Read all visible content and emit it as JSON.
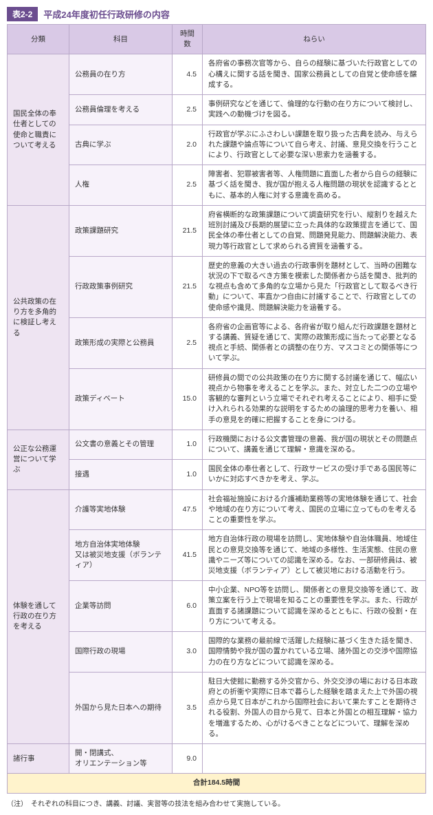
{
  "title": {
    "badge": "表2-2",
    "text": "平成24年度初任行政研修の内容"
  },
  "headers": {
    "category": "分類",
    "subject": "科目",
    "hours": "時間数",
    "aim": "ねらい"
  },
  "groups": [
    {
      "category": "国民全体の奉仕者としての使命と職責について考える",
      "rows": [
        {
          "subject": "公務員の在り方",
          "hours": "4.5",
          "aim": "各府省の事務次官等から、自らの経験に基づいた行政官としての心構えに関する話を聞き、国家公務員としての自覚と使命感を醸成する。"
        },
        {
          "subject": "公務員倫理を考える",
          "hours": "2.5",
          "aim": "事例研究などを通じて、倫理的な行動の在り方について検討し、実践への動機づけを図る。"
        },
        {
          "subject": "古典に学ぶ",
          "hours": "2.0",
          "aim": "行政官が学ぶにふさわしい課題を取り扱った古典を読み、与えられた課題や論点等について自ら考え、討議、意見交換を行うことにより、行政官として必要な深い思索力を涵養する。"
        },
        {
          "subject": "人権",
          "hours": "2.5",
          "aim": "障害者、犯罪被害者等、人権問題に直面した者から自らの経験に基づく話を聞き、我が国が抱える人権問題の現状を認識するとともに、基本的人権に対する意識を高める。"
        }
      ]
    },
    {
      "category": "公共政策の在り方を多角的に検証し考える",
      "rows": [
        {
          "subject": "政策課題研究",
          "hours": "21.5",
          "aim": "府省横断的な政策課題について調査研究を行い、縦割りを越えた班別討議及び長期的展望に立った具体的な政策提言を通じて、国民全体の奉仕者としての自覚、問題発見能力、問題解決能力、表現力等行政官として求められる資質を涵養する。"
        },
        {
          "subject": "行政政策事例研究",
          "hours": "21.5",
          "aim": "歴史的意義の大きい過去の行政事例を題材として、当時の困難な状況の下で取るべき方策を模索した関係者から話を聞き、批判的な視点も含めて多角的な立場から見た「行政官として取るべき行動」について、率直かつ自由に討議することで、行政官としての使命感や識見、問題解決能力を涵養する。"
        },
        {
          "subject": "政策形成の実際と公務員",
          "hours": "2.5",
          "aim": "各府省の企画官等による、各府省が取り組んだ行政課題を題材とする講義、質疑を通じて、実際の政策形成に当たって必要となる視点と手続、関係者との調整の在り方、マスコミとの関係等について学ぶ。"
        },
        {
          "subject": "政策ディベート",
          "hours": "15.0",
          "aim": "研修員の間での公共政策の在り方に関する討議を通じて、幅広い視点から物事を考えることを学ぶ。また、対立した二つの立場や客観的な審判という立場でそれぞれ考えることにより、相手に受け入れられる効果的な説明をするための論理的思考力を養い、相手の意見を的確に把握することを身につける。"
        }
      ]
    },
    {
      "category": "公正な公務運営について学ぶ",
      "rows": [
        {
          "subject": "公文書の意義とその管理",
          "hours": "1.0",
          "aim": "行政機関における公文書管理の意義、我が国の現状とその問題点について、講義を通じて理解・意識を深める。"
        },
        {
          "subject": "接遇",
          "hours": "1.0",
          "aim": "国民全体の奉仕者として、行政サービスの受け手である国民等にいかに対応すべきかを考え、学ぶ。"
        }
      ]
    },
    {
      "category": "体験を通して行政の在り方を考える",
      "rows": [
        {
          "subject": "介護等実地体験",
          "hours": "47.5",
          "aim": "社会福祉施設における介護補助業務等の実地体験を通じて、社会や地域の在り方について考え、国民の立場に立ってものを考えることの重要性を学ぶ。"
        },
        {
          "subject": "地方自治体実地体験\n又は被災地支援（ボランティア）",
          "hours": "41.5",
          "aim": "地方自治体行政の現場を訪問し、実地体験や自治体職員、地域住民との意見交換等を通じて、地域の多様性、生活実態、住民の意識やニーズ等についての認識を深める。なお、一部研修員は、被災地支援（ボランティア）として被災地における活動を行う。"
        },
        {
          "subject": "企業等訪問",
          "hours": "6.0",
          "aim": "中小企業、NPO等を訪問し、関係者との意見交換等を通じて、政策立案を行う上で現場を知ることの重要性を学ぶ。また、行政が直面する諸課題について認識を深めるとともに、行政の役割・在り方について考える。"
        },
        {
          "subject": "国際行政の現場",
          "hours": "3.0",
          "aim": "国際的な業務の最前線で活躍した経験に基づく生きた話を聞き、国際情勢や我が国の置かれている立場、諸外国との交渉や国際協力の在り方などについて認識を深める。"
        },
        {
          "subject": "外国から見た日本への期待",
          "hours": "3.5",
          "aim": "駐日大使館に勤務する外交官から、外交交渉の場における日本政府との折衝や実際に日本で暮らした経験を踏まえた上で外国の視点から見て日本がこれから国際社会において果たすことを期待される役割、外国人の目から見て、日本と外国との相互理解・協力を増進するため、心がけるべきことなどについて、理解を深める。"
        }
      ]
    },
    {
      "category": "諸行事",
      "rows": [
        {
          "subject": "開・閉講式、\nオリエンテーション等",
          "hours": "9.0",
          "aim": ""
        }
      ]
    }
  ],
  "total": "合計184.5時間",
  "footnote": "（注）　それぞれの科目につき、講義、討議、実習等の技法を組み合わせて実施している。"
}
